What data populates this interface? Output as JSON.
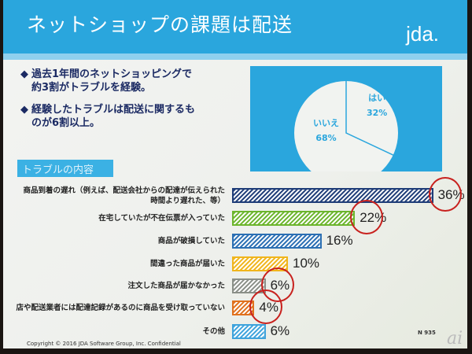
{
  "slide": {
    "title": "ネットショップの課題は配送",
    "logo": "jda.",
    "bullets": [
      {
        "line1": "過去1年間のネットショッピングで",
        "line2": "約3割がトラブルを経験。"
      },
      {
        "line1": "経験したトラブルは配送に関するも",
        "line2": "のが6割以上。"
      }
    ],
    "bullet_icon": "diamond-icon",
    "section_label": "トラブルの内容",
    "sample_size": "N 935",
    "copyright": "Copyright © 2016 JDA Software Group, Inc. Confidential",
    "watermark": "ai"
  },
  "chart_data": [
    {
      "type": "pie",
      "slices": [
        {
          "label": "はい",
          "value": 32,
          "value_label": "32%"
        },
        {
          "label": "いいえ",
          "value": 68,
          "value_label": "68%"
        }
      ],
      "colors": {
        "fill": "#f1f3f0",
        "background": "#2aa6dd",
        "text": "#2aa6dd"
      }
    },
    {
      "type": "bar",
      "orientation": "horizontal",
      "categories": [
        [
          "商品到着の遅れ（例えば、配送会社からの配達が伝えられた",
          "時間より遅れた、等）"
        ],
        [
          "在宅していたが不在伝票が入っていた"
        ],
        [
          "商品が破損していた"
        ],
        [
          "間違った商品が届いた"
        ],
        [
          "注文した商品が届かなかった"
        ],
        [
          "店や配送業者には配達記録があるのに商品を受け取っていない"
        ],
        [
          "その他"
        ]
      ],
      "values": [
        36,
        22,
        16,
        10,
        6,
        4,
        6
      ],
      "value_labels": [
        "36%",
        "22%",
        "16%",
        "10%",
        "6%",
        "4%",
        "6%"
      ],
      "colors": [
        "#1f3d78",
        "#6cb52d",
        "#2b6fb3",
        "#f0b51c",
        "#8a8f88",
        "#e0711d",
        "#3ea3dc"
      ],
      "pattern": "diagonal-hatch",
      "highlighted": [
        true,
        true,
        false,
        false,
        true,
        true,
        false
      ],
      "highlight_color": "#c8211e"
    }
  ]
}
